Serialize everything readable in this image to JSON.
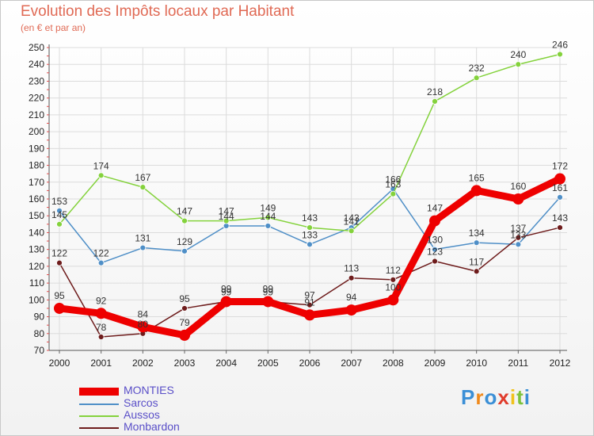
{
  "header": {
    "title": "Evolution des Impôts locaux par Habitant",
    "subtitle": "(en € et par an)"
  },
  "chart_data": {
    "type": "line",
    "title": "Evolution des Impôts locaux par Habitant",
    "subtitle": "(en € et par an)",
    "xlabel": "",
    "ylabel": "",
    "categories": [
      "2000",
      "2001",
      "2002",
      "2003",
      "2004",
      "2005",
      "2006",
      "2007",
      "2008",
      "2009",
      "2010",
      "2011",
      "2012"
    ],
    "ylim": [
      70,
      250
    ],
    "yticks": [
      70,
      80,
      90,
      100,
      110,
      120,
      130,
      140,
      150,
      160,
      170,
      180,
      190,
      200,
      210,
      220,
      230,
      240,
      250
    ],
    "grid": true,
    "legend_position": "bottom-left",
    "series": [
      {
        "name": "Sarcos",
        "color": "#4f8fc7",
        "values": [
          153,
          122,
          131,
          129,
          144,
          144,
          133,
          143,
          166,
          130,
          134,
          133,
          161
        ],
        "labels": [
          "153",
          "122",
          "131",
          "129",
          "144",
          "144",
          "133",
          "143",
          "166",
          "130",
          "134",
          "133",
          "161"
        ]
      },
      {
        "name": "Aussos",
        "color": "#84d23c",
        "values": [
          145,
          174,
          167,
          147,
          147,
          149,
          143,
          141,
          163,
          218,
          232,
          240,
          246
        ],
        "labels": [
          "145",
          "174",
          "167",
          "147",
          "147",
          "149",
          "143",
          "141",
          "163",
          "218",
          "232",
          "240",
          "246"
        ]
      },
      {
        "name": "Monbardon",
        "color": "#6e1c1c",
        "values": [
          122,
          78,
          80,
          95,
          99,
          99,
          97,
          113,
          112,
          123,
          117,
          137,
          143
        ],
        "labels": [
          "122",
          "78",
          "80",
          "95",
          "99",
          "99",
          "97",
          "113",
          "112",
          "123",
          "117",
          "137",
          "143"
        ]
      },
      {
        "name": "MONTIES",
        "color": "#ee0000",
        "values": [
          95,
          92,
          84,
          79,
          99,
          99,
          91,
          94,
          100,
          147,
          165,
          160,
          172
        ],
        "labels": [
          "95",
          "92",
          "84",
          "79",
          "99",
          "99",
          "91",
          "94",
          "100",
          "147",
          "165",
          "160",
          "172"
        ]
      }
    ],
    "legend": [
      "MONTIES",
      "Sarcos",
      "Aussos",
      "Monbardon"
    ]
  },
  "logo": {
    "letters": [
      "P",
      "r",
      "o",
      "x",
      "i",
      "t",
      "i"
    ],
    "colors": [
      "#3b8fd6",
      "#f08a1c",
      "#3b8fd6",
      "#e03c2c",
      "#f0c21c",
      "#7cc23c",
      "#3b8fd6"
    ]
  }
}
